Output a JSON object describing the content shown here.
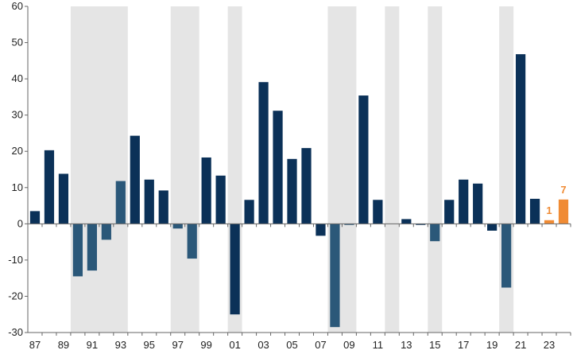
{
  "chart_data": {
    "type": "bar",
    "title": "",
    "xlabel": "",
    "ylabel": "",
    "ylim": [
      -30,
      60
    ],
    "yticks": [
      60,
      50,
      40,
      30,
      20,
      10,
      0,
      -10,
      -20,
      -30
    ],
    "grid": false,
    "categories": [
      "87",
      "88",
      "89",
      "90",
      "91",
      "92",
      "93",
      "94",
      "95",
      "96",
      "97",
      "98",
      "99",
      "00",
      "01",
      "02",
      "03",
      "04",
      "05",
      "06",
      "07",
      "08",
      "09",
      "10",
      "11",
      "12",
      "13",
      "14",
      "15",
      "16",
      "17",
      "18",
      "19",
      "20",
      "21",
      "22",
      "23",
      "24"
    ],
    "x_tick_labels": [
      "87",
      "89",
      "91",
      "93",
      "95",
      "97",
      "99",
      "01",
      "03",
      "05",
      "07",
      "09",
      "11",
      "13",
      "15",
      "17",
      "19",
      "21",
      "23"
    ],
    "values": [
      3.5,
      20.3,
      13.8,
      -14.5,
      -12.9,
      -4.4,
      11.8,
      24.3,
      12.2,
      9.2,
      -1.3,
      -9.6,
      18.3,
      13.3,
      -25.0,
      6.6,
      39.1,
      31.2,
      17.9,
      20.9,
      -3.3,
      -28.5,
      -0.3,
      35.4,
      6.6,
      0,
      1.3,
      -0.3,
      -4.8,
      6.6,
      12.2,
      11.1,
      -1.9,
      -17.6,
      46.8,
      6.9,
      1.0,
      6.7
    ],
    "bar_colors": [
      "#0b3158",
      "#0b3158",
      "#0b3158",
      "#2b5879",
      "#2b5879",
      "#2b5879",
      "#2b5879",
      "#0b3158",
      "#0b3158",
      "#0b3158",
      "#2b5879",
      "#2b5879",
      "#0b3158",
      "#0b3158",
      "#0b3158",
      "#0b3158",
      "#0b3158",
      "#0b3158",
      "#0b3158",
      "#0b3158",
      "#0b3158",
      "#2b5879",
      "#2b5879",
      "#0b3158",
      "#0b3158",
      "#0b3158",
      "#0b3158",
      "#0b3158",
      "#2b5879",
      "#0b3158",
      "#0b3158",
      "#0b3158",
      "#0b3158",
      "#2b5879",
      "#0b3158",
      "#0b3158",
      "#f08b34",
      "#f08b34"
    ],
    "shaded_periods": [
      [
        "90",
        "93"
      ],
      [
        "97",
        "98"
      ],
      [
        "01",
        "01"
      ],
      [
        "08",
        "09"
      ],
      [
        "12",
        "12"
      ],
      [
        "15",
        "15"
      ],
      [
        "20",
        "20"
      ]
    ],
    "shade_color": "#e5e5e5",
    "data_labels": [
      {
        "category": "23",
        "text": "1"
      },
      {
        "category": "24",
        "text": "7"
      }
    ],
    "highlight_color": "#f08b34"
  }
}
